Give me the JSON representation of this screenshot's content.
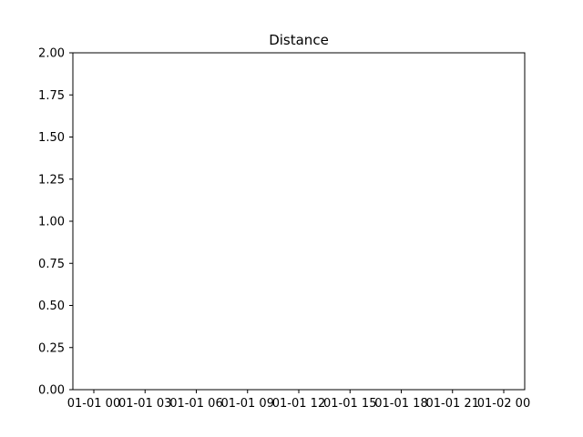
{
  "chart_data": {
    "type": "line",
    "title": "Distance",
    "xlabel": "",
    "ylabel": "",
    "x_axis": {
      "kind": "datetime",
      "range": [
        "01-01 00",
        "01-02 00"
      ],
      "tick_labels": [
        "01-01 00",
        "01-01 03",
        "01-01 06",
        "01-01 09",
        "01-01 12",
        "01-01 15",
        "01-01 18",
        "01-01 21",
        "01-02 00"
      ]
    },
    "ylim": [
      0.0,
      2.0
    ],
    "y_tick_values": [
      0.0,
      0.25,
      0.5,
      0.75,
      1.0,
      1.25,
      1.5,
      1.75,
      2.0
    ],
    "y_tick_labels": [
      "0.00",
      "0.25",
      "0.50",
      "0.75",
      "1.00",
      "1.25",
      "1.50",
      "1.75",
      "2.00"
    ],
    "series": [],
    "grid": false,
    "legend": "none"
  }
}
